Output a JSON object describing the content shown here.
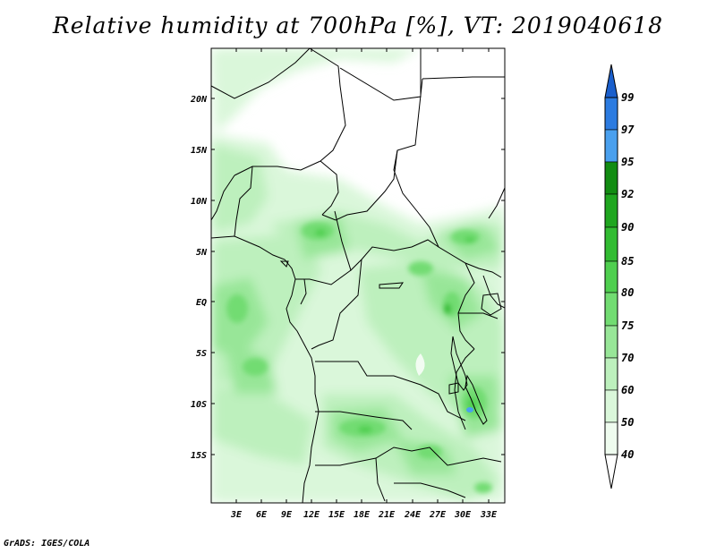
{
  "title": "Relative humidity at 700hPa [%], VT: 2019040618",
  "credit": "GrADS: IGES/COLA",
  "map": {
    "lat_labels": [
      "20N",
      "15N",
      "10N",
      "5N",
      "EQ",
      "5S",
      "10S",
      "15S"
    ],
    "lon_labels": [
      "3E",
      "6E",
      "9E",
      "12E",
      "15E",
      "18E",
      "21E",
      "24E",
      "27E",
      "30E",
      "33E"
    ]
  },
  "colorbar": {
    "labels": [
      "99",
      "97",
      "95",
      "92",
      "90",
      "85",
      "80",
      "75",
      "70",
      "60",
      "50",
      "40"
    ],
    "colors": {
      "above_99": "#1a5fcc",
      "97_99": "#2c7be0",
      "95_97": "#4aa0ee",
      "92_95": "#128c12",
      "90_92": "#1fa61f",
      "85_90": "#32bc32",
      "80_85": "#4fcf4f",
      "75_80": "#72dc72",
      "70_75": "#98e698",
      "60_70": "#bdf0bd",
      "50_60": "#daf7da",
      "40_50": "#effcef",
      "below_40": "#ffffff"
    }
  }
}
